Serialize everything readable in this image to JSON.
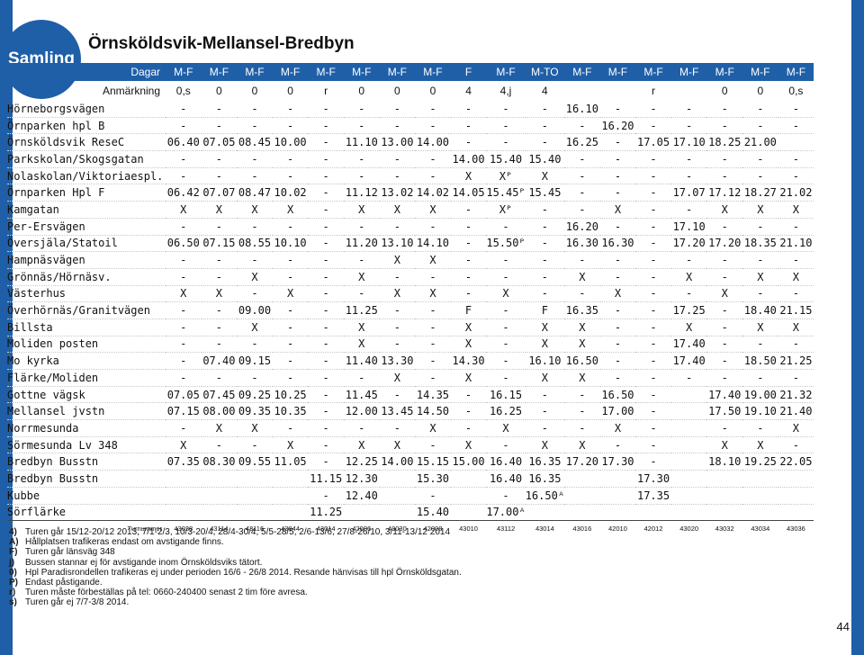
{
  "brand": {
    "label": "Samling",
    "color": "#1f5fa8"
  },
  "title": "Örnsköldsvik-Mellansel-Bredbyn",
  "days_label": "Dagar",
  "days": [
    "M-F",
    "M-F",
    "M-F",
    "M-F",
    "M-F",
    "M-F",
    "M-F",
    "M-F",
    "F",
    "M-F",
    "M-TO",
    "M-F",
    "M-F",
    "M-F",
    "M-F",
    "M-F",
    "M-F",
    "M-F"
  ],
  "notes_label": "Anmärkning",
  "notes": [
    "0,s",
    "0",
    "0",
    "0",
    "r",
    "0",
    "0",
    "0",
    "4",
    "4,j",
    "4",
    "",
    "",
    "r",
    "",
    "0",
    "0",
    "0,s"
  ],
  "stops": [
    {
      "name": "Hörneborgsvägen",
      "t": [
        "-",
        "-",
        "-",
        "-",
        "-",
        "-",
        "-",
        "-",
        "-",
        "-",
        "-",
        "16.10",
        "-",
        "-",
        "-",
        "-",
        "-",
        "-"
      ]
    },
    {
      "name": "Örnparken hpl B",
      "t": [
        "-",
        "-",
        "-",
        "-",
        "-",
        "-",
        "-",
        "-",
        "-",
        "-",
        "-",
        "-",
        "16.20",
        "-",
        "-",
        "-",
        "-",
        "-"
      ]
    },
    {
      "name": "Örnsköldsvik ReseC",
      "t": [
        "06.40",
        "07.05",
        "08.45",
        "10.00",
        "-",
        "11.10",
        "13.00",
        "14.00",
        "-",
        "-",
        "-",
        "16.25",
        "-",
        "17.05",
        "17.10",
        "18.25",
        "21.00",
        ""
      ]
    },
    {
      "name": "Parkskolan/Skogsgatan",
      "t": [
        "-",
        "-",
        "-",
        "-",
        "-",
        "-",
        "-",
        "-",
        "14.00",
        "15.40",
        "15.40",
        "-",
        "-",
        "-",
        "-",
        "-",
        "-",
        "-"
      ]
    },
    {
      "name": "Nolaskolan/Viktoriaespl.",
      "t": [
        "-",
        "-",
        "-",
        "-",
        "-",
        "-",
        "-",
        "-",
        "X",
        "Xᴾ",
        "X",
        "-",
        "-",
        "-",
        "-",
        "-",
        "-",
        "-"
      ]
    },
    {
      "name": "Örnparken Hpl F",
      "t": [
        "06.42",
        "07.07",
        "08.47",
        "10.02",
        "-",
        "11.12",
        "13.02",
        "14.02",
        "14.05",
        "15.45ᴾ",
        "15.45",
        "-",
        "-",
        "-",
        "17.07",
        "17.12",
        "18.27",
        "21.02"
      ]
    },
    {
      "name": "Kamgatan",
      "t": [
        "X",
        "X",
        "X",
        "X",
        "-",
        "X",
        "X",
        "X",
        "-",
        "Xᴾ",
        "-",
        "-",
        "X",
        "-",
        "-",
        "X",
        "X",
        "X"
      ]
    },
    {
      "name": "Per-Ersvägen",
      "t": [
        "-",
        "-",
        "-",
        "-",
        "-",
        "-",
        "-",
        "-",
        "-",
        "-",
        "-",
        "16.20",
        "-",
        "-",
        "17.10",
        "-",
        "-",
        "-"
      ]
    },
    {
      "name": "Översjäla/Statoil",
      "t": [
        "06.50",
        "07.15",
        "08.55",
        "10.10",
        "-",
        "11.20",
        "13.10",
        "14.10",
        "-",
        "15.50ᴾ",
        "-",
        "16.30",
        "16.30",
        "-",
        "17.20",
        "17.20",
        "18.35",
        "21.10"
      ]
    },
    {
      "name": "Hampnäsvägen",
      "t": [
        "-",
        "-",
        "-",
        "-",
        "-",
        "-",
        "X",
        "X",
        "-",
        "-",
        "-",
        "-",
        "-",
        "-",
        "-",
        "-",
        "-",
        "-"
      ]
    },
    {
      "name": "Grönnäs/Hörnäsv.",
      "t": [
        "-",
        "-",
        "X",
        "-",
        "-",
        "X",
        "-",
        "-",
        "-",
        "-",
        "-",
        "X",
        "-",
        "-",
        "X",
        "-",
        "X",
        "X"
      ]
    },
    {
      "name": "Västerhus",
      "t": [
        "X",
        "X",
        "-",
        "X",
        "-",
        "-",
        "X",
        "X",
        "-",
        "X",
        "-",
        "-",
        "X",
        "-",
        "-",
        "X",
        "-",
        "-"
      ]
    },
    {
      "name": "Överhörnäs/Granitvägen",
      "t": [
        "-",
        "-",
        "09.00",
        "-",
        "-",
        "11.25",
        "-",
        "-",
        "F",
        "-",
        "F",
        "16.35",
        "-",
        "-",
        "17.25",
        "-",
        "18.40",
        "21.15"
      ]
    },
    {
      "name": "Billsta",
      "t": [
        "-",
        "-",
        "X",
        "-",
        "-",
        "X",
        "-",
        "-",
        "X",
        "-",
        "X",
        "X",
        "-",
        "-",
        "X",
        "-",
        "X",
        "X"
      ]
    },
    {
      "name": "Moliden posten",
      "t": [
        "-",
        "-",
        "-",
        "-",
        "-",
        "X",
        "-",
        "-",
        "X",
        "-",
        "X",
        "X",
        "-",
        "-",
        "17.40",
        "-",
        "-",
        "-"
      ]
    },
    {
      "name": "Mo kyrka",
      "t": [
        "-",
        "07.40",
        "09.15",
        "-",
        "-",
        "11.40",
        "13.30",
        "-",
        "14.30",
        "-",
        "16.10",
        "16.50",
        "-",
        "-",
        "17.40",
        "-",
        "18.50",
        "21.25"
      ]
    },
    {
      "name": "Flärke/Moliden",
      "t": [
        "-",
        "-",
        "-",
        "-",
        "-",
        "-",
        "X",
        "-",
        "X",
        "-",
        "X",
        "X",
        "-",
        "-",
        "-",
        "-",
        "-",
        "-"
      ]
    },
    {
      "name": "Gottne vägsk",
      "t": [
        "07.05",
        "07.45",
        "09.25",
        "10.25",
        "-",
        "11.45",
        "-",
        "14.35",
        "-",
        "16.15",
        "-",
        "-",
        "16.50",
        "-",
        "",
        "17.40",
        "19.00",
        "21.32"
      ]
    },
    {
      "name": "Mellansel jvstn",
      "t": [
        "07.15",
        "08.00",
        "09.35",
        "10.35",
        "-",
        "12.00",
        "13.45",
        "14.50",
        "-",
        "16.25",
        "-",
        "-",
        "17.00",
        "-",
        "",
        "17.50",
        "19.10",
        "21.40"
      ]
    },
    {
      "name": "Norrmesunda",
      "t": [
        "-",
        "X",
        "X",
        "-",
        "-",
        "-",
        "-",
        "X",
        "-",
        "X",
        "-",
        "-",
        "X",
        "-",
        "",
        "-",
        "-",
        "X"
      ]
    },
    {
      "name": "Sörmesunda Lv 348",
      "t": [
        "X",
        "-",
        "-",
        "X",
        "-",
        "X",
        "X",
        "-",
        "X",
        "-",
        "X",
        "X",
        "-",
        "-",
        "",
        "X",
        "X",
        "-"
      ]
    },
    {
      "name": "Bredbyn Busstn",
      "t": [
        "07.35",
        "08.30",
        "09.55",
        "11.05",
        "-",
        "12.25",
        "14.00",
        "15.15",
        "15.00",
        "16.40",
        "16.35",
        "17.20",
        "17.30",
        "-",
        "",
        "18.10",
        "19.25",
        "22.05"
      ]
    },
    {
      "name": "Bredbyn Busstn",
      "t": [
        "",
        "",
        "",
        "",
        "11.15",
        "12.30",
        "",
        "15.30",
        "",
        "16.40",
        "16.35",
        "",
        "",
        "17.30",
        "",
        "",
        "",
        ""
      ]
    },
    {
      "name": "Kubbe",
      "t": [
        "",
        "",
        "",
        "",
        "-",
        "12.40",
        "",
        "-",
        "",
        "-",
        "16.50ᴬ",
        "",
        "",
        "17.35",
        "",
        "",
        "",
        ""
      ]
    },
    {
      "name": "Sörflärke",
      "t": [
        "",
        "",
        "",
        "",
        "11.25",
        "",
        "",
        "15.40",
        "",
        "17.00ᴬ",
        "",
        "",
        "",
        "",
        "",
        "",
        "",
        ""
      ]
    }
  ],
  "turnummer_label": "Turnummer",
  "turnummer": [
    "43028",
    "43114",
    "43116",
    "43044",
    "42014",
    "42006",
    "43030",
    "42008",
    "43010",
    "43112",
    "43014",
    "43016",
    "42010",
    "42012",
    "43020",
    "43032",
    "43034",
    "43036"
  ],
  "footnotes": [
    {
      "key": "4)",
      "text": "Turen går 15/12-20/12 2013, 7/1-2/3, 10/3-20/4, 28/4-30/4, 5/5-28/5, 2/6-13/6, 27/8-26/10, 3/11-13/12 2014"
    },
    {
      "key": "A)",
      "text": "Hållplatsen trafikeras endast om avstigande finns."
    },
    {
      "key": "F)",
      "text": "Turen går länsväg 348"
    },
    {
      "key": "j)",
      "text": "Bussen stannar ej för avstigande inom Örnsköldsviks tätort."
    },
    {
      "key": "0)",
      "text": "Hpl Paradisrondellen trafikeras ej under perioden 16/6 - 26/8 2014. Resande hänvisas till hpl Örnsköldsgatan."
    },
    {
      "key": "P)",
      "text": "Endast påstigande."
    },
    {
      "key": "r)",
      "text": "Turen måste förbeställas på tel: 0660-240400 senast 2 tim före avresa."
    },
    {
      "key": "s)",
      "text": "Turen går ej 7/7-3/8 2014."
    }
  ],
  "page_number": "44"
}
